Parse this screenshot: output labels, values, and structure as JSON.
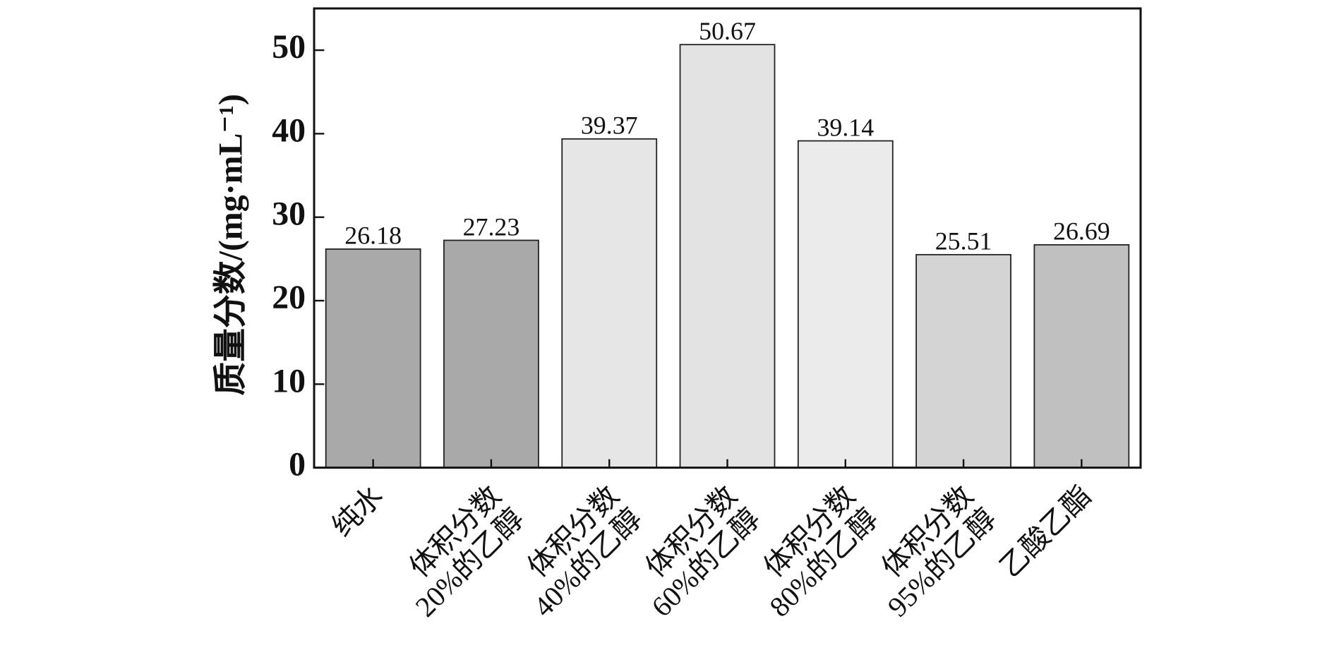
{
  "chart_data": {
    "type": "bar",
    "y_label": "质量分数/(mg·mL⁻¹)",
    "categories": [
      [
        "纯水"
      ],
      [
        "体积分数",
        "20%的乙醇"
      ],
      [
        "体积分数",
        "40%的乙醇"
      ],
      [
        "体积分数",
        "60%的乙醇"
      ],
      [
        "体积分数",
        "80%的乙醇"
      ],
      [
        "体积分数",
        "95%的乙醇"
      ],
      [
        "乙酸乙酯"
      ]
    ],
    "values": [
      26.18,
      27.23,
      39.37,
      50.67,
      39.14,
      25.51,
      26.69
    ],
    "colors": [
      "#a9a9a9",
      "#a9a9a9",
      "#e6e6e6",
      "#e3e3e3",
      "#ebebeb",
      "#d4d4d4",
      "#c0c0c0"
    ],
    "ylim": [
      0,
      55
    ],
    "yticks": [
      0,
      10,
      20,
      30,
      40,
      50
    ],
    "grid": false
  }
}
